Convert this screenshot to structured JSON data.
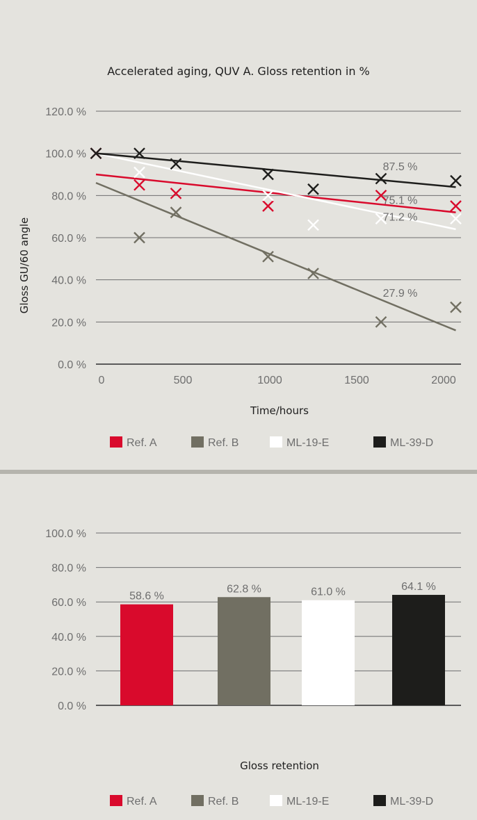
{
  "chart_data": [
    {
      "type": "scatter",
      "title": "Accelerated aging, QUV A. Gloss retention in %",
      "xlabel": "Time/hours",
      "ylabel": "Gloss GU/60 angle",
      "xlim": [
        0,
        2100
      ],
      "ylim": [
        0,
        120
      ],
      "x_ticks": [
        0,
        500,
        1000,
        1500,
        2000
      ],
      "y_ticks": [
        0,
        20,
        40,
        60,
        80,
        100,
        120
      ],
      "y_tick_labels": [
        "0.0 %",
        "20.0 %",
        "40.0 %",
        "60.0 %",
        "80.0 %",
        "100.0 %",
        "120.0 %"
      ],
      "grid": true,
      "legend_position": "bottom",
      "series": [
        {
          "name": "Ref. A",
          "color": "#d90a2c",
          "points": [
            [
              0,
              100
            ],
            [
              250,
              85
            ],
            [
              460,
              81
            ],
            [
              990,
              75
            ],
            [
              1640,
              80
            ],
            [
              2070,
              75
            ]
          ],
          "trend": [
            [
              0,
              90
            ],
            [
              2070,
              72
            ]
          ]
        },
        {
          "name": "Ref. B",
          "color": "#716f62",
          "points": [
            [
              250,
              60
            ],
            [
              460,
              72
            ],
            [
              990,
              51
            ],
            [
              1250,
              43
            ],
            [
              1640,
              20
            ],
            [
              2070,
              27
            ]
          ],
          "trend": [
            [
              0,
              86
            ],
            [
              2070,
              16
            ]
          ]
        },
        {
          "name": "ML-19-E",
          "color": "#ffffff",
          "points": [
            [
              250,
              91
            ],
            [
              460,
              95
            ],
            [
              990,
              80
            ],
            [
              1250,
              66
            ],
            [
              1640,
              69
            ],
            [
              2070,
              69
            ]
          ],
          "trend": [
            [
              0,
              100
            ],
            [
              2070,
              64
            ]
          ]
        },
        {
          "name": "ML-39-D",
          "color": "#1d1d1b",
          "points": [
            [
              0,
              100
            ],
            [
              250,
              100
            ],
            [
              460,
              95
            ],
            [
              990,
              90
            ],
            [
              1250,
              83
            ],
            [
              1640,
              88
            ],
            [
              2070,
              87
            ]
          ],
          "trend": [
            [
              0,
              100
            ],
            [
              2070,
              84
            ]
          ]
        }
      ],
      "annotations": [
        {
          "text": "87.5 %",
          "x": 1750,
          "y": 92
        },
        {
          "text": "75.1 %",
          "x": 1750,
          "y": 76
        },
        {
          "text": "71.2 %",
          "x": 1750,
          "y": 68
        },
        {
          "text": "27.9 %",
          "x": 1750,
          "y": 32
        }
      ]
    },
    {
      "type": "bar",
      "title": "",
      "xlabel": "Gloss retention",
      "ylabel": "",
      "ylim": [
        0,
        100
      ],
      "y_ticks": [
        0,
        20,
        40,
        60,
        80,
        100
      ],
      "y_tick_labels": [
        "0.0 %",
        "20.0 %",
        "40.0 %",
        "60.0 %",
        "80.0 %",
        "100.0 %"
      ],
      "grid": true,
      "legend_position": "bottom",
      "categories": [
        "Ref. A",
        "Ref. B",
        "ML-19-E",
        "ML-39-D"
      ],
      "values": [
        58.6,
        62.8,
        61.0,
        64.1
      ],
      "value_labels": [
        "58.6 %",
        "62.8 %",
        "61.0 %",
        "64.1 %"
      ],
      "colors": [
        "#d90a2c",
        "#716f62",
        "#ffffff",
        "#1d1d1b"
      ]
    }
  ]
}
